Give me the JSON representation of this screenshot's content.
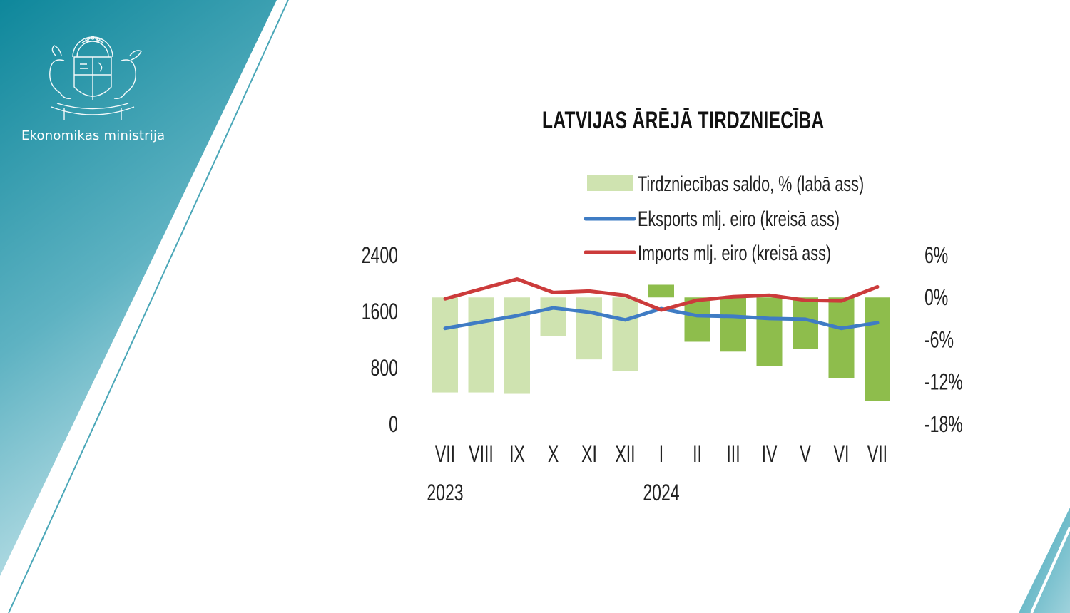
{
  "branding": {
    "ministry_name": "Ekonomikas ministrija",
    "logo_icon": "latvia-coat-of-arms-icon"
  },
  "colors": {
    "teal_dark": "#0f8b9e",
    "teal_light": "#b5dde6",
    "bar_light": "#cfe3b0",
    "bar_dark": "#8ebd4c",
    "exports": "#3f7cc4",
    "imports": "#cc3b3b"
  },
  "chart_data": {
    "type": "bar+line",
    "title": "LATVIJAS ĀRĒJĀ TIRDZNIECĪBA",
    "categories": [
      "VII",
      "VIII",
      "IX",
      "X",
      "XI",
      "XII",
      "I",
      "II",
      "III",
      "IV",
      "V",
      "VI",
      "VII"
    ],
    "year_labels": [
      {
        "label": "2023",
        "index": 0
      },
      {
        "label": "2024",
        "index": 6
      }
    ],
    "left_axis": {
      "min": 0,
      "max": 2400,
      "ticks": [
        0,
        800,
        1600,
        2400
      ],
      "tick_labels": [
        "0",
        "800",
        "1600",
        "2400"
      ]
    },
    "right_axis": {
      "min": -18,
      "max": 6,
      "ticks": [
        -18,
        -12,
        -6,
        0,
        6
      ],
      "tick_labels": [
        "-18%",
        "-12%",
        "-6%",
        "0%",
        "6%"
      ]
    },
    "series": [
      {
        "name": "Tirdzniecības saldo, % (labā ass)",
        "type": "bar",
        "axis": "right",
        "values": [
          -13.5,
          -13.5,
          -13.7,
          -5.5,
          -8.8,
          -10.5,
          1.8,
          -6.3,
          -7.7,
          -9.7,
          -7.3,
          -11.5,
          -14.7
        ],
        "shade": [
          "light",
          "light",
          "light",
          "light",
          "light",
          "light",
          "dark",
          "dark",
          "dark",
          "dark",
          "dark",
          "dark",
          "dark"
        ]
      },
      {
        "name": "Eksports mlj. eiro (kreisā ass)",
        "type": "line",
        "axis": "left",
        "values": [
          1360,
          1450,
          1540,
          1650,
          1590,
          1480,
          1640,
          1540,
          1530,
          1500,
          1490,
          1360,
          1440
        ]
      },
      {
        "name": "Imports mlj. eiro (kreisā ass)",
        "type": "line",
        "axis": "left",
        "values": [
          1780,
          1920,
          2060,
          1870,
          1890,
          1830,
          1620,
          1760,
          1810,
          1830,
          1760,
          1750,
          1950
        ]
      }
    ],
    "legend": "top"
  }
}
